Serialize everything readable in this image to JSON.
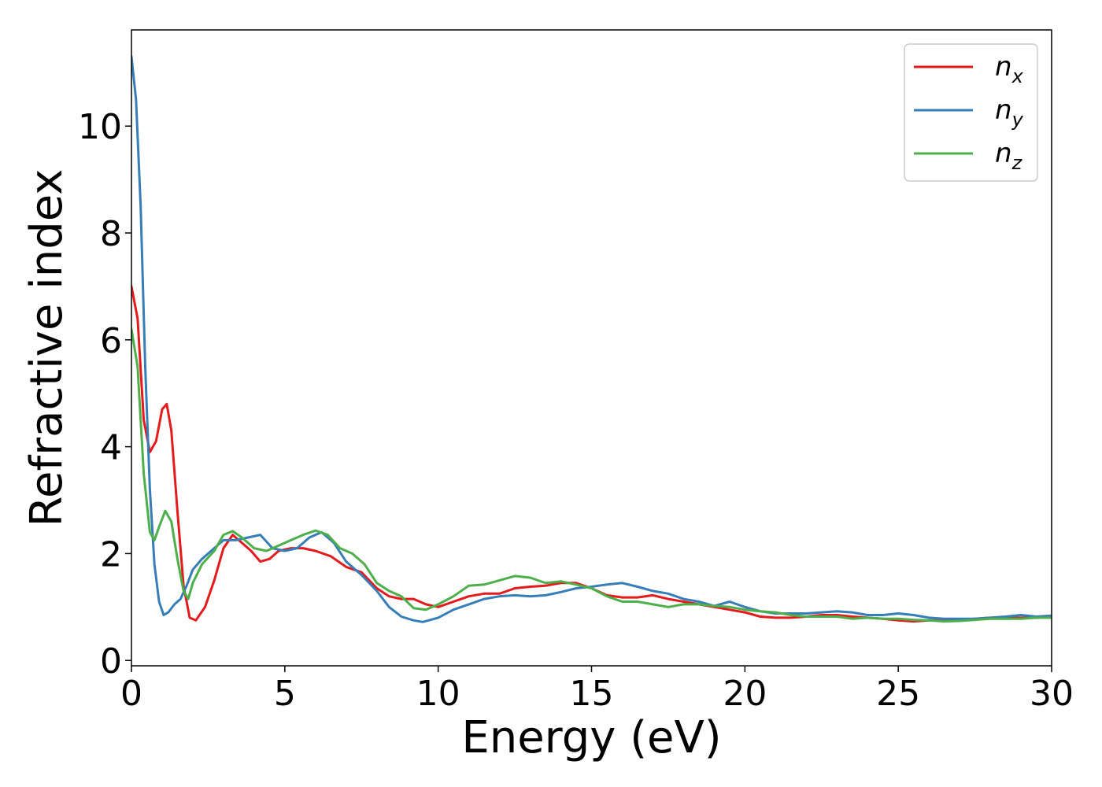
{
  "chart_data": {
    "type": "line",
    "title": "",
    "xlabel": "Energy (eV)",
    "ylabel": "Refractive index",
    "xlim": [
      0,
      30
    ],
    "ylim": [
      -0.1,
      11.8
    ],
    "xticks": [
      0,
      5,
      10,
      15,
      20,
      25,
      30
    ],
    "yticks": [
      0,
      2,
      4,
      6,
      8,
      10
    ],
    "grid": false,
    "legend_position": "top-right",
    "series": [
      {
        "name": "n",
        "subscript": "x",
        "color": "#e41a1c",
        "points": [
          [
            0,
            7.0
          ],
          [
            0.2,
            6.4
          ],
          [
            0.4,
            4.5
          ],
          [
            0.6,
            3.9
          ],
          [
            0.8,
            4.1
          ],
          [
            1.0,
            4.7
          ],
          [
            1.15,
            4.8
          ],
          [
            1.3,
            4.3
          ],
          [
            1.5,
            2.8
          ],
          [
            1.7,
            1.4
          ],
          [
            1.9,
            0.8
          ],
          [
            2.1,
            0.75
          ],
          [
            2.4,
            1.0
          ],
          [
            2.7,
            1.5
          ],
          [
            3.0,
            2.1
          ],
          [
            3.3,
            2.35
          ],
          [
            3.6,
            2.2
          ],
          [
            3.9,
            2.05
          ],
          [
            4.2,
            1.85
          ],
          [
            4.5,
            1.9
          ],
          [
            4.8,
            2.05
          ],
          [
            5.2,
            2.1
          ],
          [
            5.6,
            2.1
          ],
          [
            6.0,
            2.05
          ],
          [
            6.5,
            1.95
          ],
          [
            7.0,
            1.75
          ],
          [
            7.5,
            1.65
          ],
          [
            8.0,
            1.35
          ],
          [
            8.4,
            1.2
          ],
          [
            8.8,
            1.15
          ],
          [
            9.2,
            1.15
          ],
          [
            9.6,
            1.05
          ],
          [
            10.0,
            1.0
          ],
          [
            10.5,
            1.1
          ],
          [
            11.0,
            1.2
          ],
          [
            11.5,
            1.25
          ],
          [
            12.0,
            1.25
          ],
          [
            12.5,
            1.35
          ],
          [
            13.0,
            1.38
          ],
          [
            13.5,
            1.4
          ],
          [
            14.0,
            1.45
          ],
          [
            14.5,
            1.45
          ],
          [
            15.0,
            1.35
          ],
          [
            15.5,
            1.22
          ],
          [
            16.0,
            1.18
          ],
          [
            16.5,
            1.18
          ],
          [
            17.0,
            1.22
          ],
          [
            17.5,
            1.15
          ],
          [
            18.0,
            1.1
          ],
          [
            18.5,
            1.05
          ],
          [
            19.0,
            1.0
          ],
          [
            19.5,
            0.95
          ],
          [
            20.0,
            0.9
          ],
          [
            20.5,
            0.82
          ],
          [
            21.0,
            0.8
          ],
          [
            21.5,
            0.8
          ],
          [
            22.0,
            0.82
          ],
          [
            22.5,
            0.85
          ],
          [
            23.0,
            0.85
          ],
          [
            23.5,
            0.82
          ],
          [
            24.0,
            0.8
          ],
          [
            24.5,
            0.78
          ],
          [
            25.0,
            0.75
          ],
          [
            25.5,
            0.73
          ],
          [
            26.0,
            0.75
          ],
          [
            26.5,
            0.75
          ],
          [
            27.0,
            0.76
          ],
          [
            27.5,
            0.78
          ],
          [
            28.0,
            0.8
          ],
          [
            28.5,
            0.8
          ],
          [
            29.0,
            0.8
          ],
          [
            29.5,
            0.8
          ],
          [
            30.0,
            0.82
          ]
        ]
      },
      {
        "name": "n",
        "subscript": "y",
        "color": "#377eb8",
        "points": [
          [
            0,
            11.3
          ],
          [
            0.15,
            10.5
          ],
          [
            0.3,
            8.5
          ],
          [
            0.45,
            5.5
          ],
          [
            0.6,
            3.2
          ],
          [
            0.75,
            1.8
          ],
          [
            0.9,
            1.1
          ],
          [
            1.05,
            0.85
          ],
          [
            1.2,
            0.9
          ],
          [
            1.4,
            1.05
          ],
          [
            1.6,
            1.15
          ],
          [
            1.8,
            1.4
          ],
          [
            2.0,
            1.7
          ],
          [
            2.3,
            1.9
          ],
          [
            2.6,
            2.05
          ],
          [
            3.0,
            2.25
          ],
          [
            3.4,
            2.25
          ],
          [
            3.8,
            2.3
          ],
          [
            4.2,
            2.35
          ],
          [
            4.6,
            2.1
          ],
          [
            5.0,
            2.05
          ],
          [
            5.4,
            2.1
          ],
          [
            5.8,
            2.3
          ],
          [
            6.2,
            2.4
          ],
          [
            6.6,
            2.2
          ],
          [
            7.0,
            1.85
          ],
          [
            7.5,
            1.6
          ],
          [
            8.0,
            1.3
          ],
          [
            8.4,
            1.0
          ],
          [
            8.8,
            0.82
          ],
          [
            9.2,
            0.75
          ],
          [
            9.5,
            0.72
          ],
          [
            10.0,
            0.8
          ],
          [
            10.5,
            0.95
          ],
          [
            11.0,
            1.05
          ],
          [
            11.5,
            1.15
          ],
          [
            12.0,
            1.2
          ],
          [
            12.5,
            1.22
          ],
          [
            13.0,
            1.2
          ],
          [
            13.5,
            1.22
          ],
          [
            14.0,
            1.28
          ],
          [
            14.5,
            1.35
          ],
          [
            15.0,
            1.38
          ],
          [
            15.5,
            1.42
          ],
          [
            16.0,
            1.45
          ],
          [
            16.5,
            1.38
          ],
          [
            17.0,
            1.3
          ],
          [
            17.5,
            1.25
          ],
          [
            18.0,
            1.15
          ],
          [
            18.5,
            1.1
          ],
          [
            19.0,
            1.02
          ],
          [
            19.5,
            1.1
          ],
          [
            20.0,
            1.0
          ],
          [
            20.5,
            0.92
          ],
          [
            21.0,
            0.88
          ],
          [
            21.5,
            0.88
          ],
          [
            22.0,
            0.88
          ],
          [
            22.5,
            0.9
          ],
          [
            23.0,
            0.92
          ],
          [
            23.5,
            0.9
          ],
          [
            24.0,
            0.85
          ],
          [
            24.5,
            0.85
          ],
          [
            25.0,
            0.88
          ],
          [
            25.5,
            0.85
          ],
          [
            26.0,
            0.8
          ],
          [
            26.5,
            0.78
          ],
          [
            27.0,
            0.78
          ],
          [
            27.5,
            0.78
          ],
          [
            28.0,
            0.8
          ],
          [
            28.5,
            0.82
          ],
          [
            29.0,
            0.85
          ],
          [
            29.5,
            0.82
          ],
          [
            30.0,
            0.84
          ]
        ]
      },
      {
        "name": "n",
        "subscript": "z",
        "color": "#4daf4a",
        "points": [
          [
            0,
            6.2
          ],
          [
            0.2,
            5.5
          ],
          [
            0.4,
            3.5
          ],
          [
            0.6,
            2.4
          ],
          [
            0.75,
            2.25
          ],
          [
            0.9,
            2.5
          ],
          [
            1.1,
            2.8
          ],
          [
            1.3,
            2.6
          ],
          [
            1.5,
            1.9
          ],
          [
            1.7,
            1.3
          ],
          [
            1.85,
            1.15
          ],
          [
            2.0,
            1.45
          ],
          [
            2.3,
            1.8
          ],
          [
            2.7,
            2.05
          ],
          [
            3.0,
            2.35
          ],
          [
            3.3,
            2.42
          ],
          [
            3.6,
            2.3
          ],
          [
            4.0,
            2.1
          ],
          [
            4.4,
            2.05
          ],
          [
            4.8,
            2.15
          ],
          [
            5.2,
            2.25
          ],
          [
            5.6,
            2.35
          ],
          [
            6.0,
            2.43
          ],
          [
            6.4,
            2.35
          ],
          [
            6.8,
            2.1
          ],
          [
            7.2,
            2.0
          ],
          [
            7.6,
            1.8
          ],
          [
            8.0,
            1.45
          ],
          [
            8.4,
            1.3
          ],
          [
            8.8,
            1.2
          ],
          [
            9.2,
            0.98
          ],
          [
            9.6,
            0.95
          ],
          [
            10.0,
            1.05
          ],
          [
            10.5,
            1.2
          ],
          [
            11.0,
            1.4
          ],
          [
            11.5,
            1.42
          ],
          [
            12.0,
            1.5
          ],
          [
            12.5,
            1.58
          ],
          [
            13.0,
            1.55
          ],
          [
            13.5,
            1.45
          ],
          [
            14.0,
            1.48
          ],
          [
            14.5,
            1.42
          ],
          [
            15.0,
            1.35
          ],
          [
            15.5,
            1.2
          ],
          [
            16.0,
            1.1
          ],
          [
            16.5,
            1.1
          ],
          [
            17.0,
            1.05
          ],
          [
            17.5,
            1.0
          ],
          [
            18.0,
            1.05
          ],
          [
            18.5,
            1.05
          ],
          [
            19.0,
            1.02
          ],
          [
            19.5,
            1.0
          ],
          [
            20.0,
            0.95
          ],
          [
            20.5,
            0.92
          ],
          [
            21.0,
            0.9
          ],
          [
            21.5,
            0.85
          ],
          [
            22.0,
            0.82
          ],
          [
            22.5,
            0.82
          ],
          [
            23.0,
            0.82
          ],
          [
            23.5,
            0.78
          ],
          [
            24.0,
            0.8
          ],
          [
            24.5,
            0.78
          ],
          [
            25.0,
            0.78
          ],
          [
            25.5,
            0.76
          ],
          [
            26.0,
            0.75
          ],
          [
            26.5,
            0.73
          ],
          [
            27.0,
            0.74
          ],
          [
            27.5,
            0.76
          ],
          [
            28.0,
            0.78
          ],
          [
            28.5,
            0.78
          ],
          [
            29.0,
            0.78
          ],
          [
            29.5,
            0.8
          ],
          [
            30.0,
            0.8
          ]
        ]
      }
    ]
  }
}
